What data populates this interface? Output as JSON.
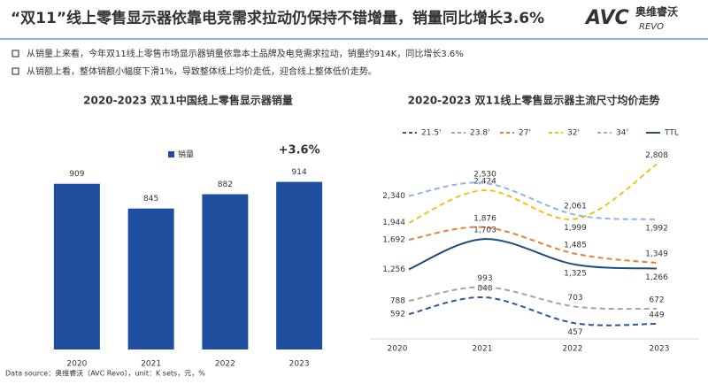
{
  "header": {
    "title": "“双11”线上零售显示器依靠电竞需求拉动仍保持不错增量，销量同比增长3.6%",
    "logo": {
      "brand": "AVC",
      "name": "奥维睿沃",
      "sub": "REVO"
    }
  },
  "bullets": [
    "从销量上来看，今年双11线上零售市场显示器销量依靠本土品牌及电竞需求拉动，销量约914K，同比增长3.6%",
    "从销额上看，整体销额小幅度下滑1%，导致整体线上均价走低，迎合线上整体低价走势。"
  ],
  "chart_data": [
    {
      "type": "bar",
      "title": "2020-2023  双11中国线上零售显示器销量",
      "categories": [
        "2020",
        "2021",
        "2022",
        "2023"
      ],
      "series": [
        {
          "name": "销量",
          "color": "#1f4e9e",
          "values": [
            909,
            845,
            882,
            914
          ]
        }
      ],
      "annotation": "+3.6%",
      "ylim": [
        480,
        1000
      ]
    },
    {
      "type": "line",
      "title": "2020-2023  双11线上零售显示器主流尺寸均价走势",
      "categories": [
        "2020",
        "2021",
        "2022",
        "2023"
      ],
      "series": [
        {
          "name": "21.5'",
          "color": "#2f55a4",
          "dashed": true,
          "values": [
            592,
            840,
            457,
            449
          ]
        },
        {
          "name": "23.8'",
          "color": "#a6a6a6",
          "dashed": true,
          "values": [
            788,
            993,
            703,
            672
          ]
        },
        {
          "name": "27'",
          "color": "#ed7d31",
          "dashed": true,
          "values": [
            1692,
            1876,
            1485,
            1349
          ],
          "value_labels": [
            "1,692",
            "1,876",
            "1,485",
            "1,349"
          ]
        },
        {
          "name": "32'",
          "color": "#f2c314",
          "dashed": true,
          "values": [
            1944,
            2424,
            1999,
            2808
          ],
          "value_labels": [
            "1,944",
            "2,424",
            "1,999",
            "2,808"
          ]
        },
        {
          "name": "34'",
          "color": "#8fb4e3",
          "dashed": true,
          "values": [
            2340,
            2530,
            2061,
            1992
          ],
          "value_labels": [
            "2,340",
            "2,530",
            "2,061",
            "1,992"
          ]
        },
        {
          "name": "TTL",
          "color": "#1f4e79",
          "dashed": false,
          "values": [
            1256,
            1703,
            1325,
            1266
          ],
          "value_labels": [
            "1,256",
            "1,703",
            "1,325",
            "1,266"
          ]
        }
      ],
      "ylim": [
        200,
        3000
      ]
    }
  ],
  "footer": {
    "source": "Data source：奥维睿沃（AVC Revo），unit：K sets，元，%"
  }
}
